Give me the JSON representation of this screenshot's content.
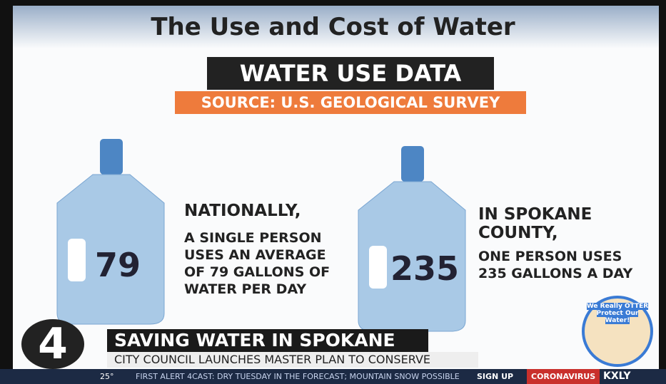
{
  "slide": {
    "title": "The Use and Cost of Water",
    "banner": "WATER USE DATA",
    "source": "SOURCE: U.S. GEOLOGICAL SURVEY",
    "left": {
      "number": 79,
      "heading": "NATIONALLY,",
      "body": "A SINGLE PERSON USES AN AVERAGE OF 79 GALLONS OF WATER PER DAY"
    },
    "right": {
      "number": 235,
      "heading": "IN SPOKANE COUNTY,",
      "body": "ONE PERSON USES 235 GALLONS A DAY"
    },
    "badge": "We Really OTTER Protect Our Water!"
  },
  "lower_third": {
    "logo": "4",
    "headline": "SAVING WATER IN SPOKANE",
    "subhead": "CITY COUNCIL LAUNCHES MASTER PLAN TO CONSERVE"
  },
  "ticker": {
    "temperature": "25°",
    "text": "FIRST ALERT 4CAST: DRY TUESDAY IN THE FORECAST; MOUNTAIN SNOW POSSIBLE",
    "signup": "SIGN UP",
    "tag": "CORONAVIRUS",
    "station": "KXLY"
  }
}
